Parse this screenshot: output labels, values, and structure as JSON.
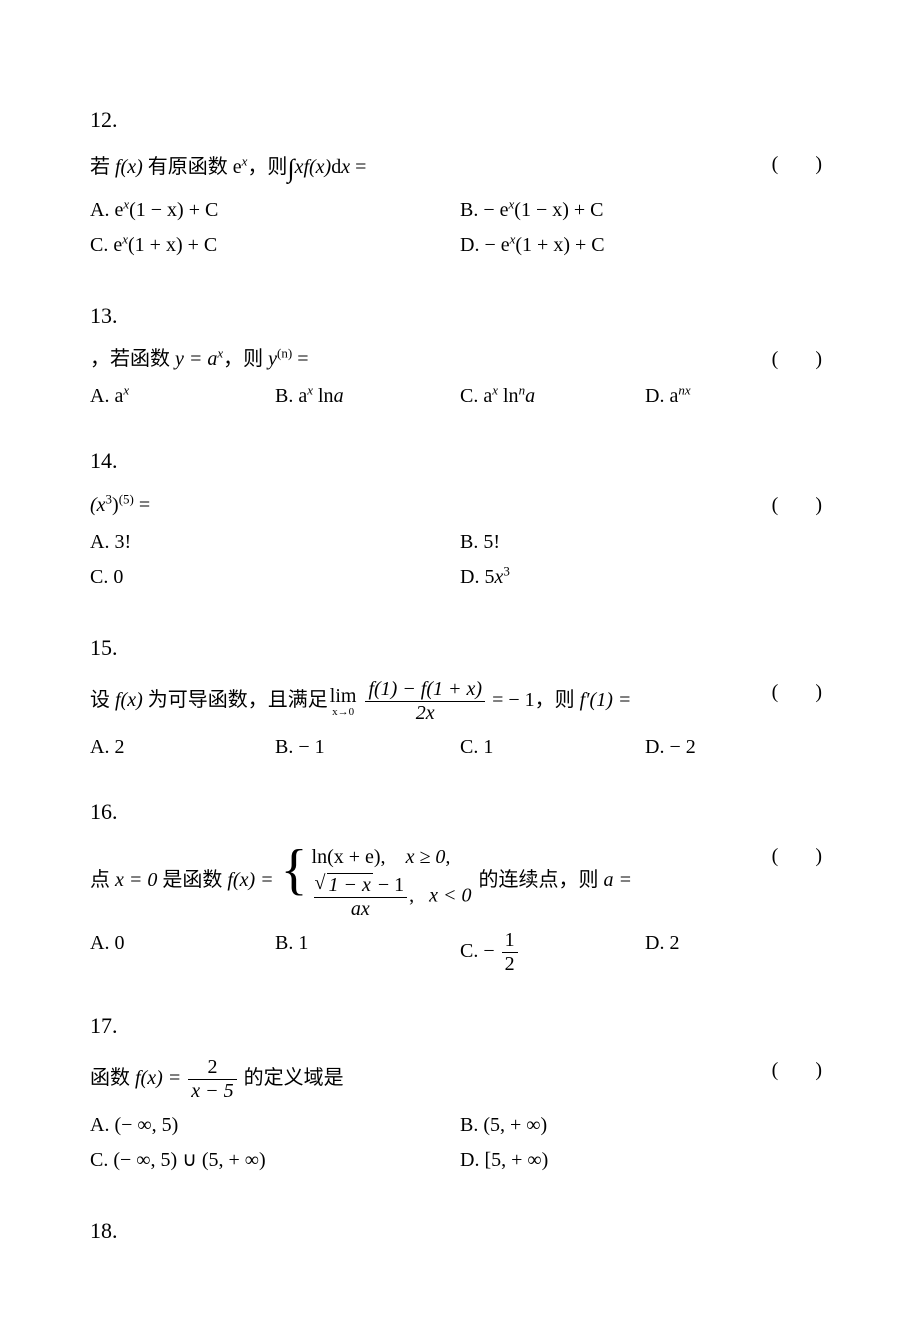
{
  "q12": {
    "num": "12.",
    "stem_pre": "若 ",
    "stem_mid": " 有原函数 e",
    "stem_post": "，则",
    "fx": "f(x)",
    "int_expr_tail": "d",
    "eq": " =",
    "paren": "(     )",
    "A_pre": "A. e",
    "A_tail": "(1 − x) + C",
    "B_pre": "B. − e",
    "B_tail": "(1 − x) + C",
    "C_pre": "C. e",
    "C_tail": "(1 + x) + C",
    "D_pre": "D. − e",
    "D_tail": "(1 + x) + C",
    "x": "x",
    "xf": "xf(x)"
  },
  "q13": {
    "num": "13.",
    "stem_pre": "，若函数 ",
    "y_eq": "y = a",
    "stem_mid": "，则 ",
    "yn": "y",
    "sup_n": "(n)",
    "eq": " =",
    "paren": "(     )",
    "A": "A. a",
    "B_pre": "B. a",
    "B_mid": " ln",
    "B_tail": "a",
    "C_pre": "C. a",
    "C_mid": " ln",
    "C_sup": "n",
    "C_tail": "a",
    "D": "D. a",
    "D_sup": "nx",
    "x": "x"
  },
  "q14": {
    "num": "14.",
    "stem_base": "(x",
    "stem_sup1": "3",
    "stem_mid": ")",
    "stem_sup2": "(5)",
    "eq": " =",
    "paren": "(     )",
    "A": "A. 3!",
    "B": "B. 5!",
    "C": "C. 0",
    "D_pre": "D. 5",
    "D_x": "x",
    "D_sup": "3"
  },
  "q15": {
    "num": "15.",
    "stem_pre": "设 ",
    "fx": "f(x)",
    "stem_mid": " 为可导函数，且满足",
    "lim": "lim",
    "lim_sub": "x→0",
    "frac_num_a": "f(1) − f(1 + x)",
    "frac_den": "2x",
    "eq1": " = − 1，则 ",
    "fprime": "f′(1) =",
    "paren": "(     )",
    "A": "A. 2",
    "B": "B. − 1",
    "C": "C. 1",
    "D": "D. − 2"
  },
  "q16": {
    "num": "16.",
    "stem_pre": "点 ",
    "x_eq_0": "x = 0",
    "stem_mid1": " 是函数 ",
    "fx_eq": "f(x) = ",
    "row1_a": "ln(x + e),",
    "row1_b": "x ≥ 0,",
    "row2_rad": "1 − x",
    "row2_tail": " − 1",
    "row2_den": "ax",
    "row2_comma": ",",
    "row2_b": "x < 0",
    "stem_mid2": " 的连续点，则 ",
    "a_eq": "a =",
    "paren": "(     )",
    "A": "A. 0",
    "B": "B. 1",
    "C_pre": "C. − ",
    "C_num": "1",
    "C_den": "2",
    "D": "D. 2"
  },
  "q17": {
    "num": "17.",
    "stem_pre": "函数 ",
    "fx_eq": "f(x) = ",
    "frac_num": "2",
    "frac_den": "x − 5",
    "stem_tail": " 的定义域是",
    "paren": "(     )",
    "A": "A. (− ∞, 5)",
    "B": "B. (5, + ∞)",
    "C": "C. (− ∞, 5) ∪ (5, + ∞)",
    "D": "D. [5, + ∞)"
  },
  "q18": {
    "num": "18."
  }
}
